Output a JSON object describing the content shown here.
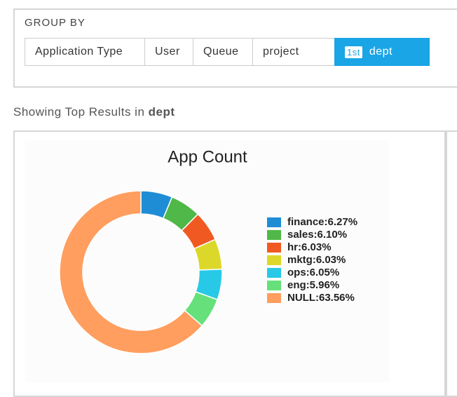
{
  "group_by": {
    "label": "GROUP BY",
    "options": [
      "Application Type",
      "User",
      "Queue",
      "project"
    ],
    "active": {
      "badge": "1st",
      "label": "dept"
    }
  },
  "results": {
    "prefix": "Showing Top Results in",
    "field": "dept"
  },
  "chart_data": {
    "type": "donut",
    "title": "App Count",
    "categories": [
      "finance:6.27%",
      "sales:6.10%",
      "hr:6.03%",
      "mktg:6.03%",
      "ops:6.05%",
      "eng:5.96%",
      "NULL:63.56%"
    ],
    "values": [
      6.27,
      6.1,
      6.03,
      6.03,
      6.05,
      5.96,
      63.56
    ],
    "colors": [
      "#1f8dd6",
      "#50b848",
      "#f05a22",
      "#dcd829",
      "#27c9e6",
      "#66e07a",
      "#ff9e5e"
    ]
  }
}
